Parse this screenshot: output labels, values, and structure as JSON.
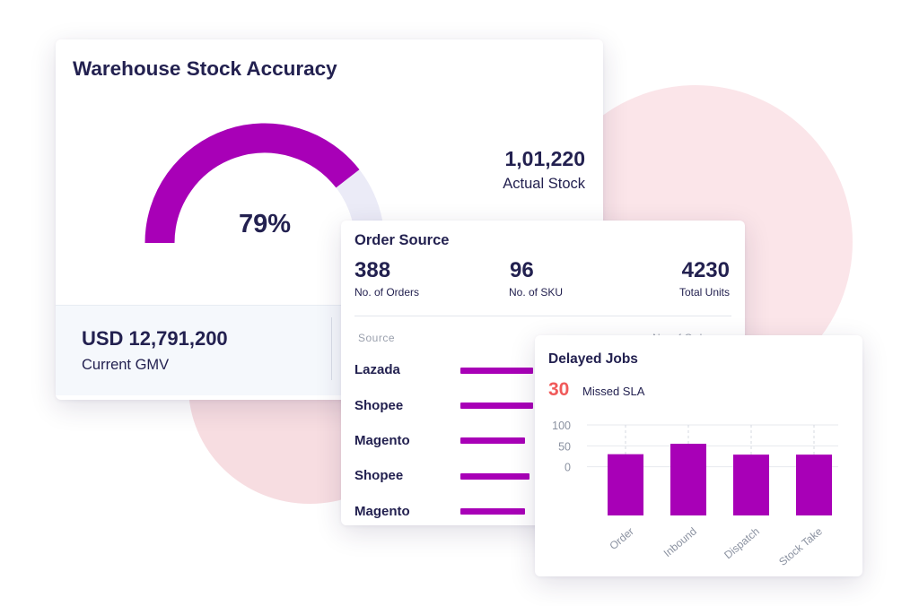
{
  "colors": {
    "accent": "#a800b7",
    "gauge_track": "#ebebf7",
    "danger": "#f05a5a",
    "text_dark": "#232150",
    "muted": "#9aa0ad",
    "blob": "#fbe5e9"
  },
  "warehouse": {
    "title": "Warehouse Stock Accuracy",
    "accuracy_value": 79,
    "accuracy_label": "79%",
    "actual_stock_value": "1,01,220",
    "actual_stock_label": "Actual Stock",
    "gmv_value": "USD 12,791,200",
    "gmv_label": "Current GMV"
  },
  "order_source": {
    "title": "Order Source",
    "stats": [
      {
        "value": "388",
        "label": "No. of Orders"
      },
      {
        "value": "96",
        "label": "No. of SKU"
      },
      {
        "value": "4230",
        "label": "Total Units"
      }
    ],
    "column_header": "Source",
    "right_header": "No. of Orders",
    "rows": [
      {
        "label": "Lazada",
        "fill": 0.9
      },
      {
        "label": "Shopee",
        "fill": 0.9
      },
      {
        "label": "Magento",
        "fill": 0.8
      },
      {
        "label": "Shopee",
        "fill": 0.85
      },
      {
        "label": "Magento",
        "fill": 0.8
      }
    ]
  },
  "delayed_jobs": {
    "title": "Delayed Jobs",
    "count": "30",
    "count_label": "Missed SLA"
  },
  "chart_data": {
    "type": "bar",
    "categories": [
      "Order",
      "Inbound",
      "Dispatch",
      "Stock Take"
    ],
    "values": [
      30,
      55,
      29,
      29
    ],
    "yticks": [
      100,
      50,
      0
    ],
    "grid": true,
    "ylim": [
      -50,
      100
    ],
    "title": "",
    "xlabel": "",
    "ylabel": ""
  }
}
